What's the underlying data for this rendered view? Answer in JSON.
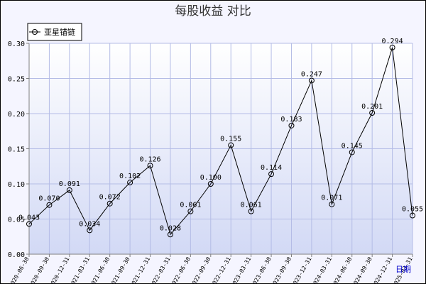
{
  "chart_data": {
    "type": "line",
    "title": "每股收益  对比",
    "xlabel": "",
    "ylabel": "",
    "ylim": [
      0,
      0.3
    ],
    "yticks": [
      "0.00",
      "0.05",
      "0.10",
      "0.15",
      "0.20",
      "0.25",
      "0.30"
    ],
    "ytick_values": [
      0,
      0.05,
      0.1,
      0.15,
      0.2,
      0.25,
      0.3
    ],
    "grid": true,
    "legend_position": "top-left",
    "categories": [
      "2020-06-30",
      "2020-09-30",
      "2020-12-31",
      "2021-03-31",
      "2021-06-30",
      "2021-09-30",
      "2021-12-31",
      "2022-03-31",
      "2022-06-30",
      "2022-09-30",
      "2022-12-31",
      "2023-03-31",
      "2023-06-30",
      "2023-09-30",
      "2023-12-31",
      "2024-03-31",
      "2024-06-30",
      "2024-09-30",
      "2024-12-31",
      "2025-03-31"
    ],
    "series": [
      {
        "name": "亚星锚链",
        "values": [
          0.043,
          0.07,
          0.091,
          0.034,
          0.072,
          0.102,
          0.126,
          0.028,
          0.061,
          0.1,
          0.155,
          0.061,
          0.114,
          0.183,
          0.247,
          0.071,
          0.145,
          0.201,
          0.294,
          0.055
        ],
        "labels": [
          "0.043",
          "0.070",
          "0.091",
          "0.034",
          "0.072",
          "0.102",
          "0.126",
          "0.028",
          "0.061",
          "0.100",
          "0.155",
          "0.061",
          "0.114",
          "0.183",
          "0.247",
          "0.071",
          "0.145",
          "0.201",
          "0.294",
          "0.055"
        ],
        "color": "#000000"
      }
    ],
    "corner_label": "日期",
    "colors": {
      "background": "#f5f5ff",
      "plot_gradient_top": "#ffffff",
      "plot_gradient_bottom": "#d2d9f5",
      "grid": "#b4bce6",
      "axis": "#808080",
      "line": "#000000",
      "corner_label": "#0000cc"
    }
  }
}
